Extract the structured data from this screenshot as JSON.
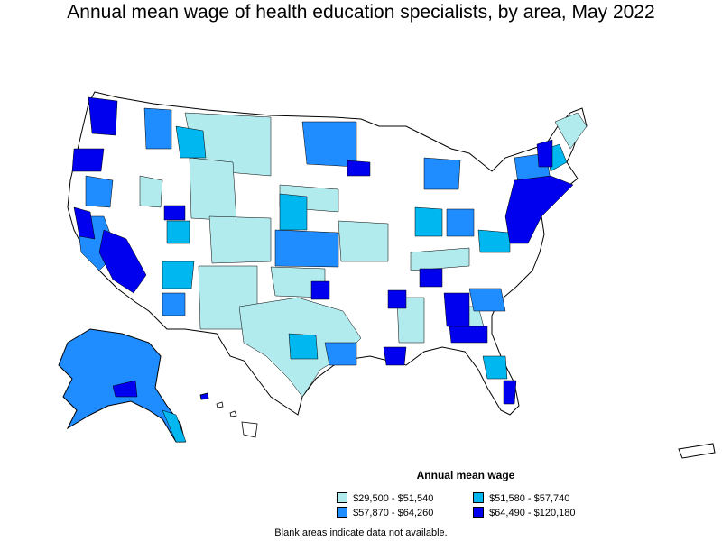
{
  "title": "Annual mean wage of health education specialists, by area, May 2022",
  "legend": {
    "title": "Annual mean wage",
    "items": [
      {
        "label": "$29,500 - $51,540",
        "color": "#b2ebee"
      },
      {
        "label": "$51,580 - $57,740",
        "color": "#00b7ef"
      },
      {
        "label": "$57,870 - $64,260",
        "color": "#1f8cff"
      },
      {
        "label": "$64,490 - $120,180",
        "color": "#0000ee"
      }
    ]
  },
  "footnote": "Blank areas indicate data not available.",
  "colors": {
    "blank": "#ffffff",
    "border": "#000000"
  }
}
